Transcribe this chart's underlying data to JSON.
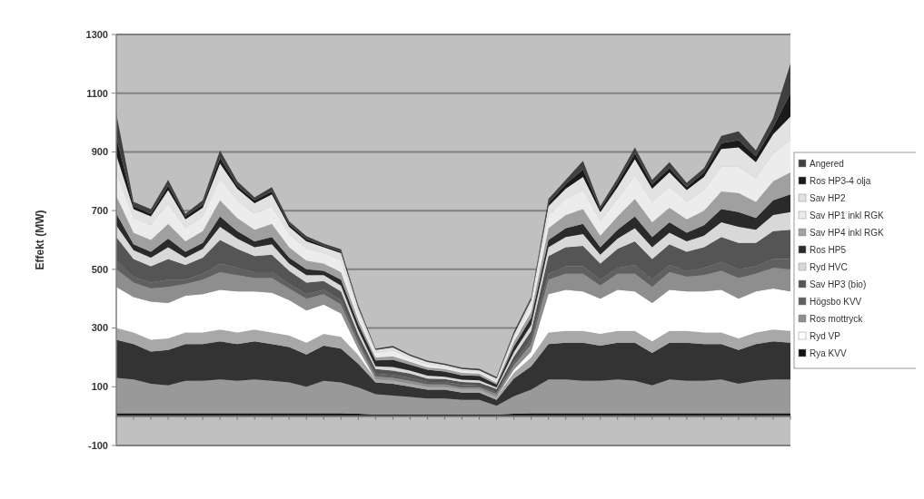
{
  "chart_data": {
    "type": "area",
    "stacked": true,
    "ylabel": "Effekt (MW)",
    "ylim": [
      -100,
      1300
    ],
    "yticks": [
      -100,
      100,
      300,
      500,
      700,
      900,
      1100,
      1300
    ],
    "grid": "y",
    "legend": "right",
    "categories": [
      null,
      null,
      null,
      null,
      null,
      null,
      null,
      null,
      null,
      null,
      null,
      null,
      null,
      null,
      null,
      null,
      null,
      null,
      null,
      null,
      null,
      null,
      null,
      null,
      null,
      null,
      null,
      null,
      null,
      null,
      null,
      null,
      null,
      null,
      null,
      null,
      null,
      null,
      null,
      null
    ],
    "series": [
      {
        "name": "Rya KVV",
        "color": "#111111",
        "values": [
          10,
          10,
          10,
          10,
          10,
          10,
          10,
          10,
          10,
          10,
          10,
          10,
          10,
          10,
          8,
          5,
          5,
          5,
          5,
          5,
          5,
          5,
          5,
          8,
          10,
          10,
          10,
          10,
          10,
          10,
          10,
          10,
          10,
          10,
          10,
          10,
          10,
          10,
          10,
          10
        ]
      },
      {
        "color": "#999999",
        "values": [
          120,
          115,
          100,
          95,
          110,
          110,
          115,
          110,
          115,
          110,
          105,
          90,
          110,
          105,
          90,
          70,
          65,
          60,
          55,
          55,
          50,
          50,
          30,
          60,
          80,
          115,
          115,
          110,
          110,
          115,
          110,
          95,
          115,
          110,
          110,
          115,
          100,
          110,
          115,
          115
        ]
      },
      {
        "color": "#333333",
        "values": [
          130,
          120,
          110,
          120,
          125,
          125,
          130,
          125,
          130,
          125,
          120,
          110,
          120,
          115,
          80,
          40,
          40,
          35,
          30,
          30,
          25,
          25,
          20,
          60,
          80,
          120,
          125,
          130,
          120,
          125,
          130,
          110,
          125,
          130,
          125,
          120,
          115,
          125,
          130,
          125
        ]
      },
      {
        "color": "#a8a8a8",
        "values": [
          40,
          40,
          40,
          40,
          40,
          40,
          40,
          40,
          40,
          40,
          40,
          40,
          40,
          40,
          30,
          10,
          10,
          10,
          10,
          10,
          10,
          10,
          10,
          20,
          30,
          40,
          40,
          40,
          40,
          40,
          40,
          40,
          40,
          40,
          40,
          40,
          40,
          40,
          40,
          40
        ]
      },
      {
        "name": "Ryd VP",
        "color": "#ffffff",
        "values": [
          140,
          120,
          130,
          120,
          125,
          130,
          135,
          140,
          130,
          135,
          120,
          110,
          100,
          80,
          20,
          0,
          0,
          0,
          0,
          0,
          0,
          0,
          0,
          10,
          20,
          130,
          140,
          135,
          120,
          140,
          135,
          130,
          140,
          135,
          140,
          145,
          135,
          140,
          140,
          135
        ]
      },
      {
        "name": "Ros mottryck",
        "color": "#8e8e8e",
        "values": [
          60,
          50,
          45,
          55,
          40,
          50,
          60,
          55,
          45,
          50,
          40,
          40,
          35,
          30,
          20,
          10,
          10,
          10,
          8,
          8,
          8,
          8,
          10,
          15,
          25,
          50,
          55,
          60,
          45,
          55,
          60,
          55,
          60,
          50,
          55,
          65,
          70,
          60,
          70,
          75
        ]
      },
      {
        "name": "Högsbo KVV",
        "color": "#606060",
        "values": [
          30,
          20,
          20,
          25,
          15,
          20,
          30,
          25,
          20,
          20,
          15,
          15,
          15,
          15,
          10,
          10,
          10,
          10,
          8,
          8,
          8,
          6,
          5,
          10,
          15,
          20,
          25,
          25,
          20,
          20,
          30,
          25,
          25,
          20,
          25,
          30,
          30,
          25,
          30,
          35
        ]
      },
      {
        "name": "Sav HP3 (bio)",
        "color": "#555555",
        "values": [
          80,
          60,
          55,
          70,
          50,
          55,
          80,
          65,
          55,
          60,
          45,
          40,
          30,
          30,
          20,
          15,
          15,
          15,
          12,
          10,
          10,
          10,
          12,
          20,
          30,
          60,
          65,
          70,
          55,
          65,
          80,
          70,
          70,
          65,
          70,
          85,
          90,
          80,
          95,
          100
        ]
      },
      {
        "name": "Ryd HVC",
        "color": "#d8d8d8",
        "values": [
          40,
          30,
          30,
          40,
          25,
          30,
          45,
          35,
          30,
          35,
          25,
          25,
          20,
          20,
          15,
          10,
          12,
          10,
          10,
          8,
          8,
          8,
          6,
          15,
          20,
          30,
          35,
          40,
          30,
          35,
          45,
          40,
          40,
          35,
          40,
          50,
          55,
          45,
          55,
          60
        ]
      },
      {
        "name": "Ros HP5",
        "color": "#2a2a2a",
        "values": [
          40,
          20,
          20,
          30,
          20,
          20,
          35,
          25,
          20,
          25,
          20,
          20,
          15,
          20,
          20,
          20,
          25,
          20,
          20,
          18,
          15,
          15,
          10,
          20,
          25,
          25,
          30,
          35,
          25,
          30,
          40,
          35,
          35,
          30,
          35,
          45,
          50,
          40,
          50,
          60
        ]
      },
      {
        "name": "Sav HP4 inkl RGK",
        "color": "#a0a0a0",
        "values": [
          60,
          40,
          40,
          50,
          35,
          40,
          55,
          45,
          40,
          45,
          35,
          30,
          25,
          25,
          15,
          10,
          12,
          10,
          8,
          8,
          8,
          8,
          5,
          15,
          20,
          40,
          45,
          50,
          40,
          45,
          60,
          50,
          50,
          45,
          50,
          60,
          65,
          55,
          65,
          75
        ]
      },
      {
        "name": "Sav HP1 inkl RGK",
        "color": "#ececec",
        "values": [
          80,
          50,
          50,
          70,
          45,
          50,
          75,
          60,
          55,
          60,
          45,
          40,
          35,
          40,
          25,
          15,
          20,
          12,
          10,
          8,
          8,
          6,
          5,
          15,
          25,
          45,
          55,
          65,
          50,
          60,
          80,
          70,
          70,
          60,
          70,
          85,
          90,
          80,
          95,
          110
        ]
      },
      {
        "name": "Sav HP2",
        "color": "#e2e2e2",
        "values": [
          60,
          30,
          30,
          45,
          30,
          30,
          50,
          40,
          35,
          40,
          25,
          25,
          20,
          25,
          15,
          10,
          10,
          8,
          8,
          6,
          5,
          5,
          10,
          10,
          15,
          30,
          35,
          45,
          30,
          40,
          55,
          45,
          50,
          40,
          45,
          60,
          65,
          55,
          65,
          80
        ]
      },
      {
        "name": "Ros HP3-4 olja",
        "color": "#1a1a1a",
        "values": [
          60,
          10,
          10,
          15,
          10,
          10,
          20,
          10,
          10,
          10,
          8,
          8,
          5,
          5,
          5,
          0,
          0,
          0,
          0,
          0,
          0,
          0,
          0,
          5,
          5,
          10,
          15,
          25,
          10,
          15,
          20,
          15,
          15,
          10,
          15,
          20,
          25,
          20,
          25,
          80
        ]
      },
      {
        "name": "Angered",
        "color": "#404040",
        "values": [
          80,
          15,
          15,
          20,
          10,
          15,
          25,
          15,
          10,
          15,
          10,
          10,
          8,
          8,
          5,
          5,
          5,
          5,
          5,
          5,
          5,
          5,
          5,
          5,
          5,
          15,
          15,
          30,
          10,
          15,
          20,
          15,
          20,
          15,
          15,
          25,
          30,
          20,
          30,
          100
        ]
      }
    ]
  }
}
